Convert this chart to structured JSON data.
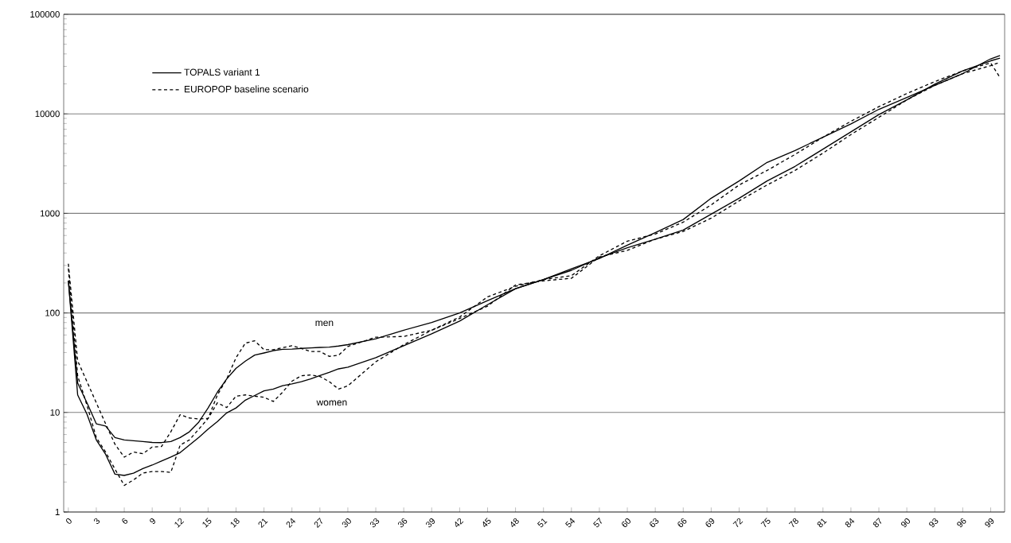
{
  "chart_data": {
    "type": "line",
    "x": [
      0,
      1,
      2,
      3,
      4,
      5,
      6,
      7,
      8,
      9,
      10,
      11,
      12,
      13,
      14,
      15,
      16,
      17,
      18,
      19,
      20,
      21,
      22,
      23,
      24,
      25,
      26,
      27,
      28,
      29,
      30,
      33,
      36,
      39,
      42,
      45,
      48,
      51,
      54,
      57,
      60,
      63,
      66,
      69,
      72,
      75,
      78,
      81,
      84,
      87,
      90,
      93,
      96,
      99,
      100
    ],
    "series": [
      {
        "name": "TOPALS variant 1",
        "color": "#000000",
        "line_style": "solid",
        "values": [
          211,
          19.8,
          12.5,
          7.7,
          7.3,
          5.6,
          5.3,
          5.2,
          5.1,
          5.0,
          4.98,
          5.1,
          5.6,
          6.4,
          8.0,
          11.1,
          16,
          21.7,
          27.8,
          32.8,
          37.7,
          39.6,
          41.8,
          43.1,
          43.3,
          44,
          44.5,
          45,
          45.3,
          46.5,
          48,
          55,
          67,
          80,
          100,
          133,
          175,
          216,
          277,
          353,
          480,
          640,
          868,
          1420,
          2115,
          3250,
          4285,
          5820,
          7920,
          11100,
          14600,
          19300,
          25400,
          35700,
          38600
        ]
      },
      {
        "name": "EUROPOP baseline scenario",
        "color": "#000000",
        "line_style": "dashed",
        "values": [
          312,
          33,
          20.4,
          12.5,
          7.7,
          4.8,
          3.56,
          4.0,
          3.85,
          4.5,
          4.55,
          6.4,
          9.5,
          8.8,
          8.6,
          8.7,
          15,
          21.7,
          35.5,
          49.7,
          52.5,
          42.7,
          42.7,
          44.7,
          46.8,
          44,
          41,
          41,
          36.6,
          37.5,
          46,
          57,
          58,
          67,
          91,
          145,
          185,
          216,
          237,
          375,
          526,
          620,
          816,
          1217,
          1930,
          2700,
          3910,
          5820,
          8420,
          11800,
          16000,
          21100,
          27000,
          32500,
          23200
        ]
      },
      {
        "color": "#000000",
        "line_style": "solid",
        "values": [
          211,
          15,
          9.6,
          5.3,
          3.8,
          2.4,
          2.33,
          2.46,
          2.73,
          2.96,
          3.25,
          3.56,
          3.95,
          4.7,
          5.6,
          6.8,
          8.1,
          9.9,
          11.1,
          13.3,
          14.8,
          16.5,
          17.2,
          18.6,
          19.4,
          20.4,
          21.7,
          23.5,
          25.3,
          27.4,
          28.5,
          35.5,
          46.8,
          61.6,
          82.7,
          121,
          175,
          216,
          268,
          357,
          452,
          550,
          680,
          982,
          1420,
          2115,
          2965,
          4415,
          6590,
          9820,
          13800,
          19900,
          27000,
          34100,
          36300
        ]
      },
      {
        "color": "#000000",
        "line_style": "dashed",
        "values": [
          280,
          23.3,
          11.8,
          5.6,
          4.0,
          2.7,
          1.85,
          2.1,
          2.46,
          2.55,
          2.55,
          2.5,
          4.7,
          5.3,
          6.8,
          8.7,
          12.5,
          11.2,
          14.6,
          15,
          14.6,
          14.2,
          12.9,
          16,
          20.6,
          23.4,
          23.8,
          23,
          20.4,
          17.2,
          18.5,
          32.3,
          48,
          67,
          88,
          117,
          191,
          210,
          223,
          365,
          425,
          550,
          659,
          895,
          1335,
          1930,
          2700,
          4030,
          6190,
          9230,
          13800,
          19300,
          25400,
          30500,
          33000
        ]
      }
    ],
    "xlim": [
      -0.5,
      100.5
    ],
    "xticks": [
      0,
      3,
      6,
      9,
      12,
      15,
      18,
      21,
      24,
      27,
      30,
      33,
      36,
      39,
      42,
      45,
      48,
      51,
      54,
      57,
      60,
      63,
      66,
      69,
      72,
      75,
      78,
      81,
      84,
      87,
      90,
      93,
      96,
      99
    ],
    "ylim": [
      1,
      100000
    ],
    "yticks": [
      1,
      10,
      100,
      1000,
      10000,
      100000
    ],
    "log": "y",
    "grid": "y",
    "legend": "top left",
    "annotations": [
      "men",
      "women"
    ]
  }
}
